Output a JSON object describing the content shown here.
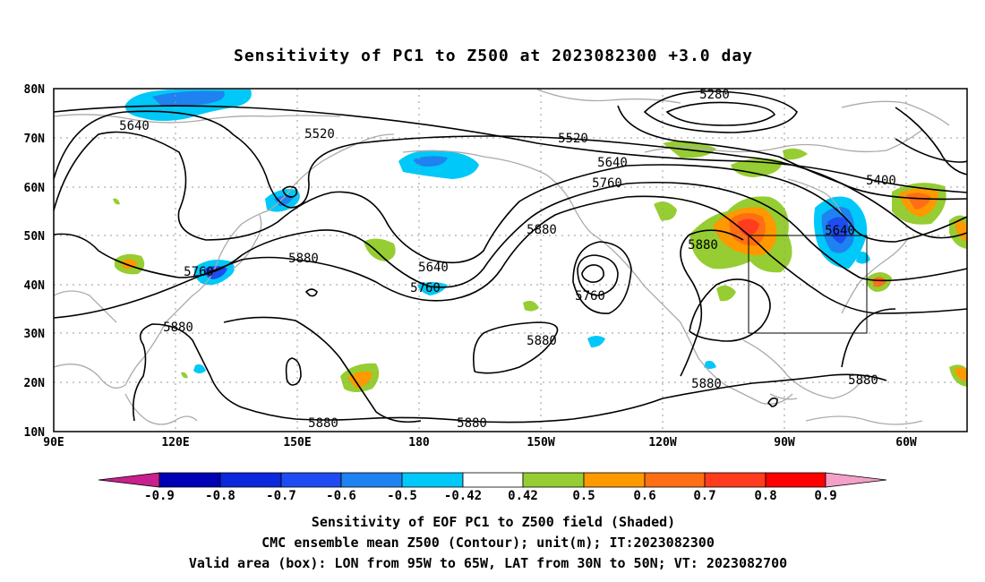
{
  "title": "Sensitivity of PC1 to Z500 at 2023082300 +3.0 day",
  "map": {
    "lat_labels": [
      "80N",
      "70N",
      "60N",
      "50N",
      "40N",
      "30N",
      "20N",
      "10N"
    ],
    "lon_labels": [
      "90E",
      "120E",
      "150E",
      "180",
      "150W",
      "120W",
      "90W",
      "60W"
    ],
    "valid_box": {
      "lon_from": "95W",
      "lon_to": "65W",
      "lat_from": "30N",
      "lat_to": "50N"
    }
  },
  "contour_labels": [
    "5280",
    "5400",
    "5520",
    "5520",
    "5640",
    "5640",
    "5640",
    "5640",
    "5760",
    "5760",
    "5760",
    "5760",
    "5880",
    "5880",
    "5880",
    "5880",
    "5880",
    "5880",
    "5880",
    "5880",
    "5880"
  ],
  "colorbar": {
    "ticks": [
      "-0.9",
      "-0.8",
      "-0.7",
      "-0.6",
      "-0.5",
      "-0.42",
      "0.42",
      "0.5",
      "0.6",
      "0.7",
      "0.8",
      "0.9"
    ],
    "colors": {
      "lt_-0.9": "#c8208c",
      "-0.9_-0.8": "#0000b4",
      "-0.8_-0.7": "#0c28dc",
      "-0.7_-0.6": "#1e4cf0",
      "-0.6_-0.5": "#1e82f0",
      "-0.5_-0.42": "#00c8f8",
      "-0.42_0.42": "#ffffff",
      "0.42_0.5": "#96cd32",
      "0.5_0.6": "#ff9900",
      "0.6_0.7": "#ff6e14",
      "0.7_0.8": "#ff3c1e",
      "0.8_0.9": "#ff0000",
      "gt_0.9": "#f4a0c8"
    }
  },
  "footer": {
    "line1": "Sensitivity of EOF PC1 to Z500 field (Shaded)",
    "line2": "CMC ensemble mean Z500 (Contour); unit(m); IT:2023082300",
    "line3": "Valid area (box): LON from 95W to 65W, LAT from 30N to 50N; VT: 2023082700"
  }
}
